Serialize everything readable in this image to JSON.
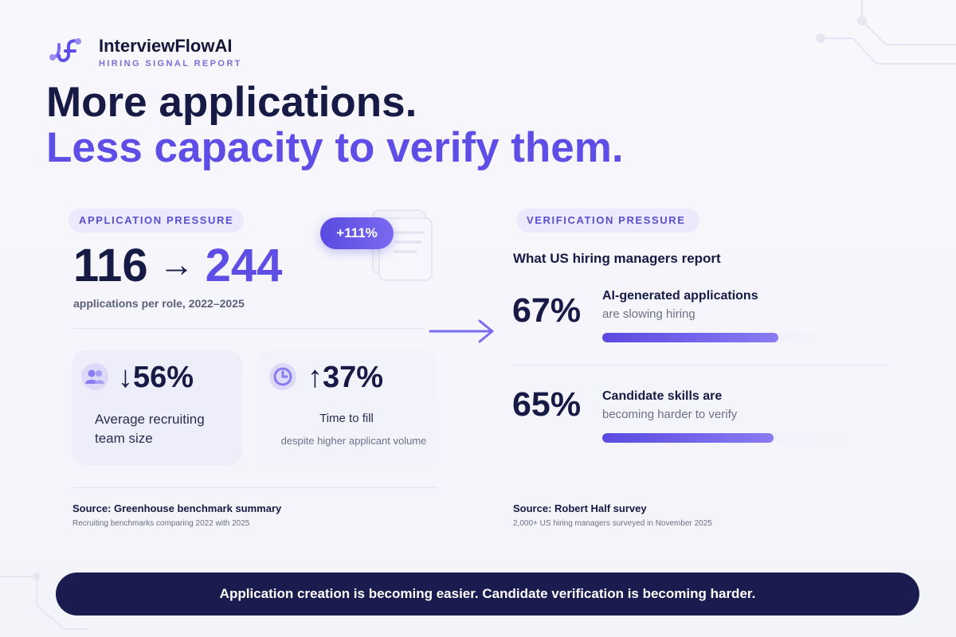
{
  "brand": {
    "name": "InterviewFlowAI",
    "subtitle": "HIRING SIGNAL REPORT"
  },
  "headline": {
    "line1": "More applications.",
    "line2": "Less capacity to verify them."
  },
  "left": {
    "label": "APPLICATION PRESSURE",
    "from_value": "116",
    "arrow": "→",
    "to_value": "244",
    "badge": "+111%",
    "caption": "applications per role, 2022–2025",
    "stats": [
      {
        "icon": "team-icon",
        "value": "↓56%",
        "label": "Average recruiting team size",
        "note": ""
      },
      {
        "icon": "clock-icon",
        "value": "↑37%",
        "label": "Time to fill",
        "note": "despite higher applicant volume"
      }
    ],
    "source": {
      "title": "Source: Greenhouse benchmark summary",
      "note": "Recruiting benchmarks comparing 2022 with 2025"
    }
  },
  "right": {
    "label": "VERIFICATION PRESSURE",
    "subhead": "What US hiring managers report",
    "metrics": [
      {
        "value": "67%",
        "title": "AI-generated applications",
        "desc": "are slowing hiring",
        "level": 0.67
      },
      {
        "value": "65%",
        "title": "Candidate skills are",
        "desc": "becoming harder to verify",
        "level": 0.65
      }
    ],
    "source": {
      "title": "Source: Robert Half survey",
      "note": "2,000+ US hiring managers surveyed in November 2025"
    }
  },
  "banner": "Application creation is becoming easier. Candidate verification is becoming harder.",
  "colors": {
    "accent": "#5e4ee6",
    "navy": "#1a1b4e",
    "ink": "#161a45"
  }
}
